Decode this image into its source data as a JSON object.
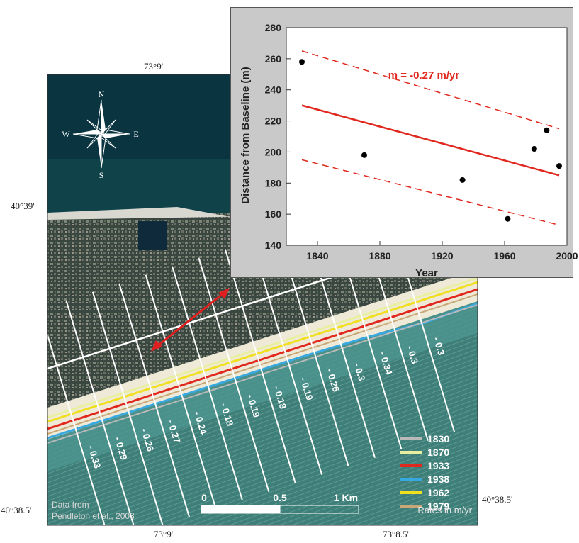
{
  "coords": {
    "top_lon": "73°9'",
    "bottom_lon_left": "73°9'",
    "bottom_lon_right": "73°8.5'",
    "left_lat_top": "40°39'",
    "left_lat_bottom": "40°38.5'",
    "right_lat_bottom": "40°38.5'"
  },
  "compass": {
    "n": "N",
    "s": "S",
    "e": "E",
    "w": "W"
  },
  "transect_rates": [
    "- 0.33",
    "- 0.29",
    "- 0.26",
    "- 0.27",
    "- 0.24",
    "- 0.18",
    "- 0.19",
    "- 0.18",
    "- 0.19",
    "- 0.26",
    "- 0.3",
    "- 0.34",
    "- 0.3",
    "- 0.3"
  ],
  "legend": {
    "items": [
      {
        "label": "1830",
        "color": "#b9b9b9"
      },
      {
        "label": "1870",
        "color": "#e8f0a0"
      },
      {
        "label": "1933",
        "color": "#e0281e"
      },
      {
        "label": "1938",
        "color": "#38a8e0"
      },
      {
        "label": "1962",
        "color": "#f0e020"
      },
      {
        "label": "1979",
        "color": "#c8a878"
      }
    ],
    "note": "Rates in m/yr"
  },
  "scale": {
    "labels": [
      "0",
      "0.5",
      "1 Km"
    ]
  },
  "credit": {
    "line1": "Data from",
    "line2": "Pendleton et al., 2003"
  },
  "chart_data": {
    "type": "scatter",
    "x": [
      1830,
      1870,
      1933,
      1962,
      1979,
      1987,
      1995
    ],
    "y": [
      258,
      198,
      182,
      157,
      202,
      214,
      191
    ],
    "fit": {
      "x": [
        1830,
        1995
      ],
      "y": [
        230,
        185
      ]
    },
    "confidence_upper": {
      "x": [
        1830,
        1995
      ],
      "y": [
        265,
        215
      ]
    },
    "confidence_lower": {
      "x": [
        1830,
        1995
      ],
      "y": [
        195,
        153
      ]
    },
    "annotation": "m = -0.27 m/yr",
    "xlabel": "Year",
    "ylabel": "Distance from Baseline (m)",
    "xlim": [
      1820,
      2000
    ],
    "ylim": [
      140,
      280
    ],
    "xticks": [
      1840,
      1880,
      1920,
      1960,
      2000
    ],
    "yticks": [
      140,
      160,
      180,
      200,
      220,
      240,
      260,
      280
    ],
    "grid": false
  }
}
